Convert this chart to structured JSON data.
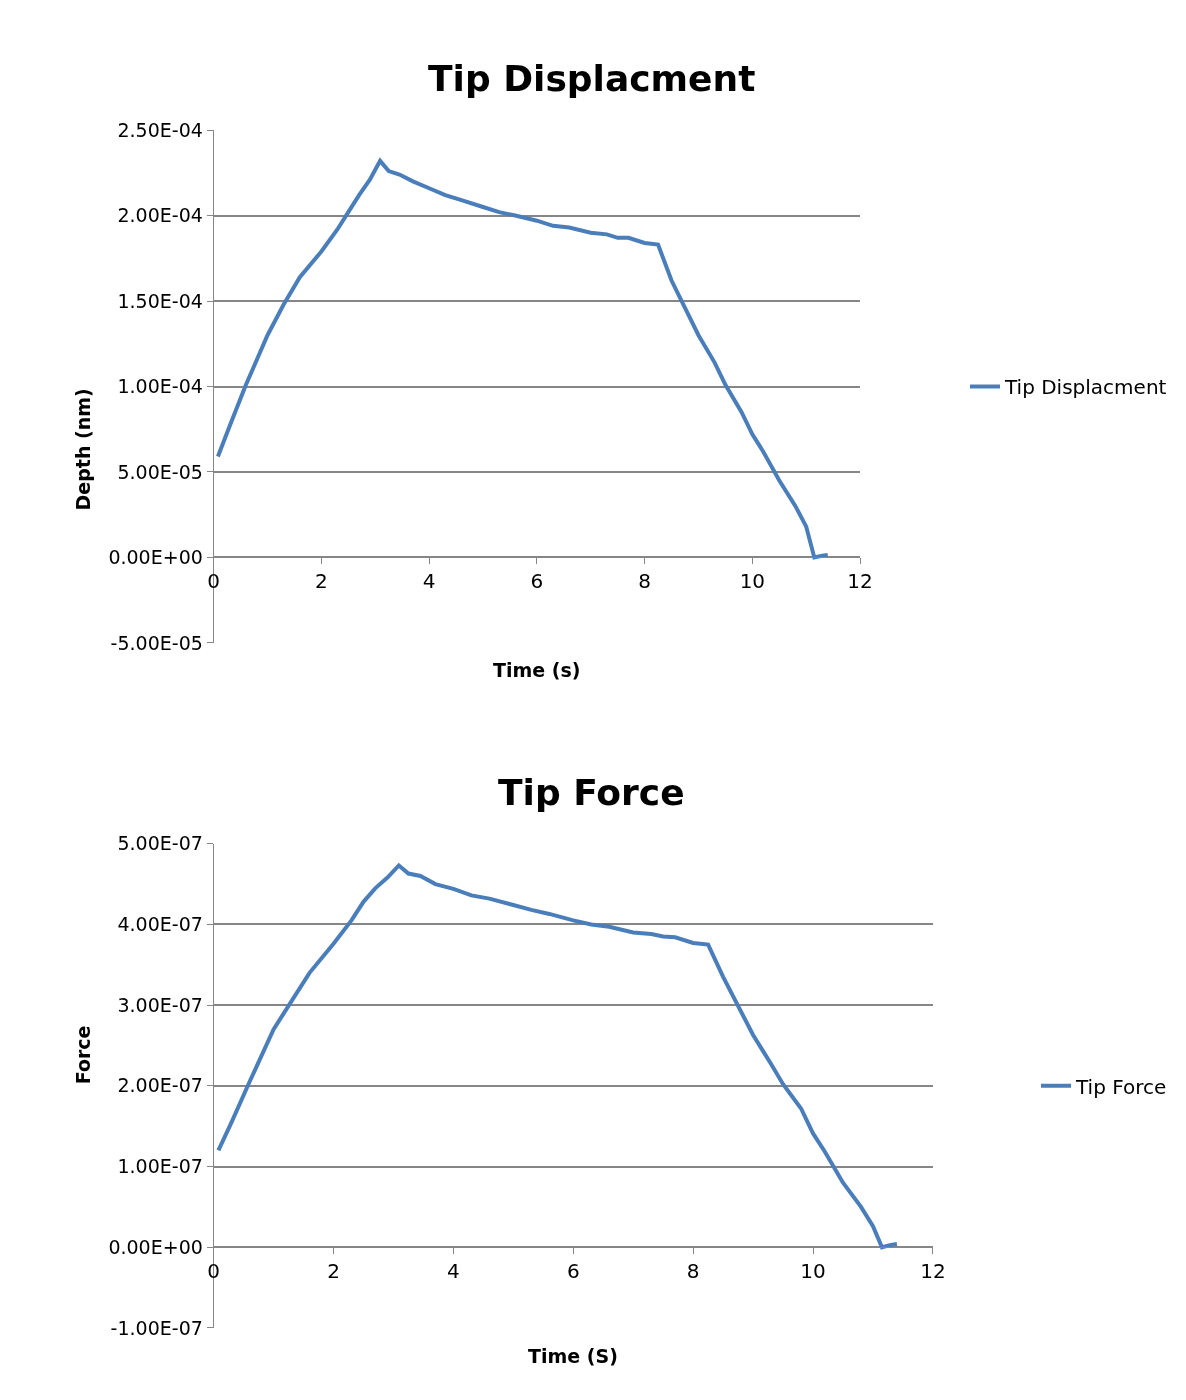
{
  "chart_data": [
    {
      "type": "line",
      "title": "Tip Displacment",
      "xlabel": "Time (s)",
      "ylabel": "Depth (nm)",
      "x": [
        0.08,
        0.3,
        0.6,
        1.0,
        1.3,
        1.6,
        2.0,
        2.3,
        2.5,
        2.7,
        2.9,
        3.09,
        3.25,
        3.45,
        3.7,
        4.0,
        4.3,
        4.6,
        5.0,
        5.3,
        5.6,
        6.0,
        6.3,
        6.6,
        7.0,
        7.3,
        7.5,
        7.7,
        8.0,
        8.25,
        8.5,
        9.0,
        9.3,
        9.5,
        9.8,
        10.0,
        10.2,
        10.5,
        10.8,
        11.0,
        11.15,
        11.3,
        11.4
      ],
      "series": [
        {
          "name": "Tip Displacment",
          "color": "#4a7ebb",
          "values": [
            5.9e-05,
            7.7e-05,
            0.000101,
            0.00013,
            0.000148,
            0.000164,
            0.000179,
            0.000192,
            0.000202,
            0.000212,
            0.000221,
            0.000232,
            0.000226,
            0.000224,
            0.00022,
            0.000216,
            0.000212,
            0.000209,
            0.000205,
            0.000202,
            0.0002,
            0.000197,
            0.000194,
            0.000193,
            0.00019,
            0.000189,
            0.000187,
            0.000187,
            0.000184,
            0.000183,
            0.000162,
            0.00013,
            0.000114,
            0.000101,
            8.5e-05,
            7.2e-05,
            6.2e-05,
            4.5e-05,
            3e-05,
            1.8e-05,
            0.0,
            1e-06,
            1.5e-06
          ]
        }
      ],
      "xlim": [
        0,
        12
      ],
      "xticks": [
        0,
        2,
        4,
        6,
        8,
        10,
        12
      ],
      "ylim": [
        -5e-05,
        0.00025
      ],
      "yticks": [
        {
          "value": -5e-05,
          "label": "-5.00E-05"
        },
        {
          "value": 0,
          "label": "0.00E+00"
        },
        {
          "value": 5e-05,
          "label": "5.00E-05"
        },
        {
          "value": 0.0001,
          "label": "1.00E-04"
        },
        {
          "value": 0.00015,
          "label": "1.50E-04"
        },
        {
          "value": 0.0002,
          "label": "2.00E-04"
        },
        {
          "value": 0.00025,
          "label": "2.50E-04"
        }
      ],
      "grid": "y",
      "legend": "right",
      "marker": "none",
      "line_style": "solid"
    },
    {
      "type": "line",
      "title": "Tip Force",
      "xlabel": "Time (S)",
      "ylabel": "Force",
      "x": [
        0.08,
        0.3,
        0.6,
        1.0,
        1.3,
        1.6,
        2.0,
        2.3,
        2.5,
        2.7,
        2.9,
        3.09,
        3.25,
        3.45,
        3.7,
        4.0,
        4.3,
        4.6,
        5.0,
        5.3,
        5.6,
        6.0,
        6.3,
        6.6,
        7.0,
        7.3,
        7.5,
        7.7,
        8.0,
        8.25,
        8.5,
        9.0,
        9.3,
        9.5,
        9.8,
        10.0,
        10.2,
        10.5,
        10.8,
        11.0,
        11.15,
        11.3,
        11.4
      ],
      "series": [
        {
          "name": "Tip Force",
          "color": "#4a7ebb",
          "values": [
            1.2e-07,
            1.55e-07,
            2.05e-07,
            2.7e-07,
            3.05e-07,
            3.4e-07,
            3.76e-07,
            4.05e-07,
            4.28e-07,
            4.45e-07,
            4.58e-07,
            4.73e-07,
            4.63e-07,
            4.6e-07,
            4.5e-07,
            4.44e-07,
            4.36e-07,
            4.32e-07,
            4.24e-07,
            4.18e-07,
            4.13e-07,
            4.05e-07,
            4e-07,
            3.97e-07,
            3.9e-07,
            3.88e-07,
            3.85e-07,
            3.84e-07,
            3.77e-07,
            3.75e-07,
            3.35e-07,
            2.63e-07,
            2.27e-07,
            2.02e-07,
            1.72e-07,
            1.41e-07,
            1.18e-07,
            8e-08,
            5e-08,
            2.6e-08,
            0.0,
            3e-09,
            4e-09
          ]
        }
      ],
      "xlim": [
        0,
        12
      ],
      "xticks": [
        0,
        2,
        4,
        6,
        8,
        10,
        12
      ],
      "ylim": [
        -1e-07,
        5e-07
      ],
      "yticks": [
        {
          "value": -1e-07,
          "label": "-1.00E-07"
        },
        {
          "value": 0,
          "label": "0.00E+00"
        },
        {
          "value": 1e-07,
          "label": "1.00E-07"
        },
        {
          "value": 2e-07,
          "label": "2.00E-07"
        },
        {
          "value": 3e-07,
          "label": "3.00E-07"
        },
        {
          "value": 4e-07,
          "label": "4.00E-07"
        },
        {
          "value": 5e-07,
          "label": "5.00E-07"
        }
      ],
      "grid": "y",
      "legend": "right",
      "marker": "none",
      "line_style": "solid"
    }
  ]
}
